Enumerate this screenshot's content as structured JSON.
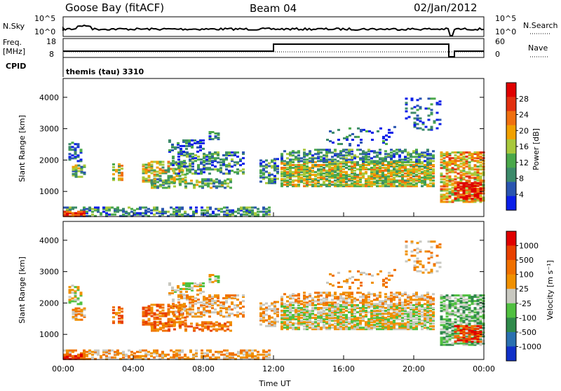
{
  "header": {
    "station": "Goose Bay (fitACF)",
    "beam": "Beam 04",
    "date": "02/Jan/2012"
  },
  "strip_panels": {
    "nsky_label": "N.Sky",
    "nsky_ticks": [
      "10^5",
      "10^0"
    ],
    "nsearch_label": "N.Search",
    "nsearch_ticks": [
      "10^5",
      "10^0"
    ],
    "freq_label_1": "Freq.",
    "freq_label_2": "[MHz]",
    "freq_ticks": [
      "18",
      "8"
    ],
    "nave_label": "Nave",
    "nave_ticks": [
      "60",
      "0"
    ],
    "cpid_label": "CPID",
    "cpid_text": "themis (tau) 3310"
  },
  "chart_data": [
    {
      "type": "heatmap",
      "name": "power",
      "ylabel": "Slant Range [km]",
      "xlabel": "",
      "y_ticks": [
        "1000",
        "2000",
        "3000",
        "4000"
      ],
      "ylim": [
        200,
        4600
      ],
      "xlim_hours": [
        0,
        24
      ],
      "colorbar_label": "Power [dB]",
      "colorbar_ticks": [
        "4",
        "8",
        "12",
        "16",
        "20",
        "24",
        "28"
      ],
      "colors": [
        "#0a1ee8",
        "#2a55b0",
        "#3c8a6a",
        "#4aa84a",
        "#a8c83c",
        "#f0a000",
        "#f07010",
        "#e23010",
        "#e00000"
      ]
    },
    {
      "type": "heatmap",
      "name": "velocity",
      "ylabel": "Slant Range [km]",
      "xlabel": "Time UT",
      "y_ticks": [
        "1000",
        "2000",
        "3000",
        "4000"
      ],
      "ylim": [
        200,
        4600
      ],
      "x_ticks": [
        "00:00",
        "04:00",
        "08:00",
        "12:00",
        "16:00",
        "20:00",
        "00:00"
      ],
      "xlim_hours": [
        0,
        24
      ],
      "colorbar_label": "Velocity [m s⁻¹]",
      "colorbar_ticks": [
        "1000",
        "500",
        "100",
        "25",
        "-25",
        "-100",
        "-500",
        "-1000"
      ],
      "colors": [
        "#1030c8",
        "#2a70b0",
        "#2f8a4a",
        "#50c040",
        "#c8c8c0",
        "#f09000",
        "#f07000",
        "#e84000",
        "#e00000"
      ]
    }
  ]
}
